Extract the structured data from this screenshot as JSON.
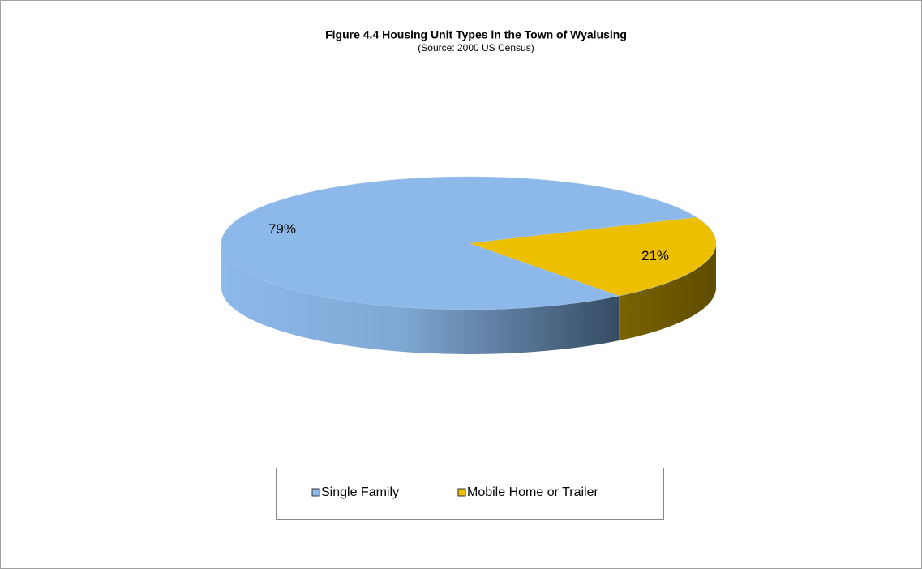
{
  "chart_data": {
    "type": "pie",
    "title": "Figure 4.4 Housing Unit Types in the Town of Wyalusing",
    "subtitle": "(Source: 2000 US Census)",
    "categories": [
      "Single Family",
      "Mobile Home or Trailer"
    ],
    "values": [
      79,
      21
    ],
    "value_labels": [
      "79%",
      "21%"
    ],
    "colors": [
      "#8db9ea",
      "#ecbf00"
    ],
    "legend": "bottom"
  }
}
